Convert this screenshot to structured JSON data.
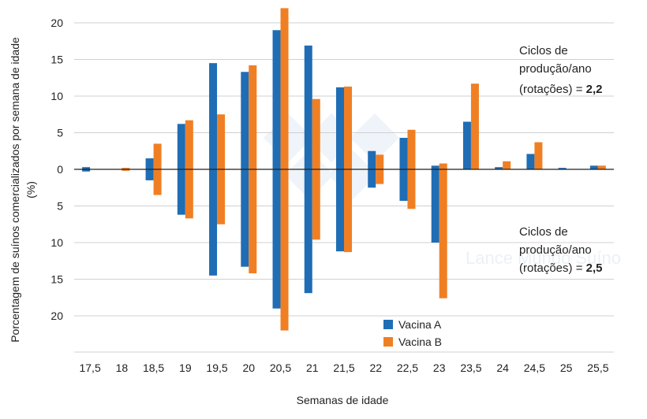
{
  "chart_data": {
    "type": "bar",
    "xlabel": "Semanas de idade",
    "ylabel": "Porcentagem de suínos comercializados por semana de idade (%)",
    "ylabel_lines": [
      "Porcentagem de suínos comercializados por semana de idade",
      "(%)"
    ],
    "ylim": [
      -22,
      22
    ],
    "yticks": [
      20,
      15,
      10,
      5,
      0,
      5,
      10,
      15,
      20
    ],
    "categories": [
      "17,5",
      "18",
      "18,5",
      "19",
      "19,5",
      "20",
      "20,5",
      "21",
      "21,5",
      "22",
      "22,5",
      "23",
      "23,5",
      "24",
      "24,5",
      "25",
      "25,5"
    ],
    "upper_series": [
      {
        "name": "Vacina A",
        "color": "#1f6db4",
        "values": [
          0.3,
          0,
          1.5,
          6.2,
          14.5,
          13.3,
          19,
          16.9,
          11.2,
          2.5,
          4.3,
          0.5,
          6.5,
          0.3,
          2.1,
          0.2,
          0.5
        ]
      },
      {
        "name": "Vacina B",
        "color": "#f07f24",
        "values": [
          0,
          0.2,
          3.5,
          6.7,
          7.5,
          14.2,
          22,
          9.6,
          11.3,
          2.0,
          5.4,
          0.8,
          11.7,
          1.1,
          3.7,
          0,
          0.5
        ]
      }
    ],
    "lower_series": [
      {
        "name": "Vacina A",
        "color": "#1f6db4",
        "values": [
          0.3,
          0,
          1.5,
          6.2,
          14.5,
          13.3,
          19,
          16.9,
          11.2,
          2.5,
          4.3,
          10,
          0,
          0,
          0,
          0,
          0
        ]
      },
      {
        "name": "Vacina B",
        "color": "#f07f24",
        "values": [
          0,
          0.2,
          3.5,
          6.7,
          7.5,
          14.2,
          22,
          9.6,
          11.3,
          2.0,
          5.4,
          17.6,
          0,
          0,
          0,
          0,
          0
        ]
      }
    ],
    "legend": [
      {
        "label": "Vacina A",
        "color": "#1f6db4"
      },
      {
        "label": "Vacina B",
        "color": "#f07f24"
      }
    ],
    "annotations": {
      "upper": {
        "line1": "Ciclos de",
        "line2": "produção/ano",
        "line3_prefix": "(rotações) = ",
        "line3_value": "2,2"
      },
      "lower": {
        "line1": "Ciclos de",
        "line2": "produção/ano",
        "line3_prefix": "(rotações) = ",
        "line3_value": "2,5"
      }
    },
    "watermark": "Lance Mundo Suíno",
    "grid": true
  }
}
